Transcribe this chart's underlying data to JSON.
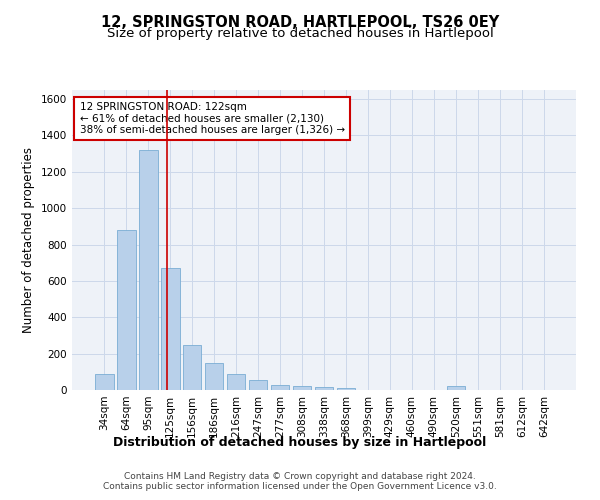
{
  "title": "12, SPRINGSTON ROAD, HARTLEPOOL, TS26 0EY",
  "subtitle": "Size of property relative to detached houses in Hartlepool",
  "xlabel": "Distribution of detached houses by size in Hartlepool",
  "ylabel": "Number of detached properties",
  "categories": [
    "34sqm",
    "64sqm",
    "95sqm",
    "125sqm",
    "156sqm",
    "186sqm",
    "216sqm",
    "247sqm",
    "277sqm",
    "308sqm",
    "338sqm",
    "368sqm",
    "399sqm",
    "429sqm",
    "460sqm",
    "490sqm",
    "520sqm",
    "551sqm",
    "581sqm",
    "612sqm",
    "642sqm"
  ],
  "values": [
    88,
    880,
    1320,
    670,
    245,
    148,
    90,
    55,
    28,
    22,
    15,
    12,
    0,
    0,
    0,
    0,
    22,
    0,
    0,
    0,
    0
  ],
  "bar_color": "#b8d0ea",
  "bar_edge_color": "#7aadd4",
  "property_line_x": 2.85,
  "property_line_color": "#cc0000",
  "annotation_text": "12 SPRINGSTON ROAD: 122sqm\n← 61% of detached houses are smaller (2,130)\n38% of semi-detached houses are larger (1,326) →",
  "annotation_box_color": "#ffffff",
  "annotation_box_edge_color": "#cc0000",
  "ylim": [
    0,
    1650
  ],
  "yticks": [
    0,
    200,
    400,
    600,
    800,
    1000,
    1200,
    1400,
    1600
  ],
  "grid_color": "#ccd8ea",
  "background_color": "#eef2f8",
  "footer_line1": "Contains HM Land Registry data © Crown copyright and database right 2024.",
  "footer_line2": "Contains public sector information licensed under the Open Government Licence v3.0.",
  "title_fontsize": 10.5,
  "subtitle_fontsize": 9.5,
  "ylabel_fontsize": 8.5,
  "xlabel_fontsize": 9,
  "tick_fontsize": 7.5,
  "annotation_fontsize": 7.5,
  "footer_fontsize": 6.5
}
